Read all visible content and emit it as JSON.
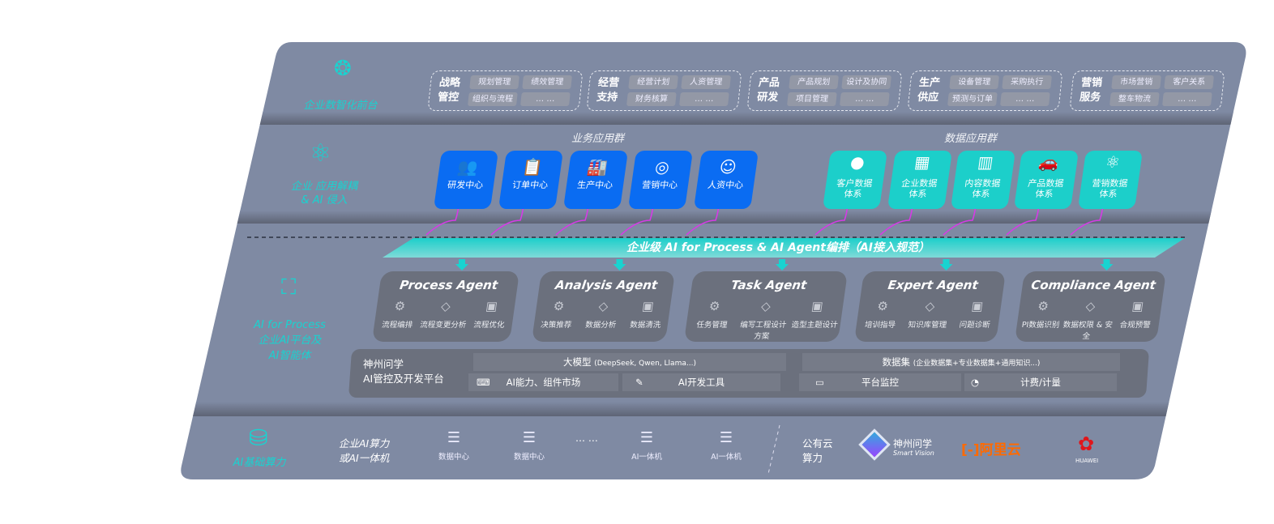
{
  "front_layer": {
    "label": "企业数智化前台",
    "icon": "brain-icon",
    "groups": [
      {
        "title": "战略管控",
        "items": [
          "规划管理",
          "绩效管理",
          "组织与流程",
          "… …"
        ]
      },
      {
        "title": "经营支持",
        "items": [
          "经营计划",
          "人资管理",
          "财务核算",
          "… …"
        ]
      },
      {
        "title": "产品研发",
        "items": [
          "产品规划",
          "设计及协同",
          "项目管理",
          "… …"
        ]
      },
      {
        "title": "生产供应",
        "items": [
          "设备管理",
          "采购执行",
          "预测与订单",
          "… …"
        ]
      },
      {
        "title": "营销服务",
        "items": [
          "市场营销",
          "客户关系",
          "整车物流",
          "… …"
        ]
      }
    ]
  },
  "app_layer": {
    "label_1": "企业 应用解耦",
    "label_2": "& AI 侵入",
    "icon": "molecule-icon",
    "business_title": "业务应用群",
    "business": [
      {
        "label": "研发中心",
        "icon": "team-icon"
      },
      {
        "label": "订单中心",
        "icon": "clipboard-icon"
      },
      {
        "label": "生产中心",
        "icon": "factory-icon"
      },
      {
        "label": "营销中心",
        "icon": "target-icon"
      },
      {
        "label": "人资中心",
        "icon": "person-growth-icon"
      }
    ],
    "data_title": "数据应用群",
    "data": [
      {
        "l1": "客户数据",
        "l2": "体系",
        "icon": "user-icon"
      },
      {
        "l1": "企业数据",
        "l2": "体系",
        "icon": "building-icon"
      },
      {
        "l1": "内容数据",
        "l2": "体系",
        "icon": "books-icon"
      },
      {
        "l1": "产品数据",
        "l2": "体系",
        "icon": "car-icon"
      },
      {
        "l1": "营销数据",
        "l2": "体系",
        "icon": "atom-icon"
      }
    ]
  },
  "ai_layer": {
    "label_1": "AI for Process",
    "label_2": "企业AI平台及",
    "label_3": "AI智能体",
    "icon": "face-scan-icon",
    "banner": "企业级 AI for Process & AI Agent编排（AI接入规范）",
    "agents": [
      {
        "name": "Process Agent",
        "items": [
          "流程编排",
          "流程变更分析",
          "流程优化"
        ]
      },
      {
        "name": "Analysis Agent",
        "items": [
          "决策推荐",
          "数据分析",
          "数据清洗"
        ]
      },
      {
        "name": "Task Agent",
        "items": [
          "任务管理",
          "编写工程设计方案",
          "造型主题设计"
        ]
      },
      {
        "name": "Expert Agent",
        "items": [
          "培训指导",
          "知识库管理",
          "问题诊断"
        ]
      },
      {
        "name": "Compliance Agent",
        "items": [
          "PI数据识别",
          "数据权限 & 安全",
          "合规预警"
        ]
      }
    ],
    "platform": {
      "name_1": "神州问学",
      "name_2": "AI管控及开发平台",
      "model": "大模型",
      "model_note": "(DeepSeek, Qwen, Llama...)",
      "dataset": "数据集",
      "dataset_note": "(企业数据集+专业数据集+通用知识...)",
      "cells": [
        "AI能力、组件市场",
        "AI开发工具",
        "平台监控",
        "计费/计量"
      ]
    }
  },
  "infra_layer": {
    "label": "AI基础算力",
    "icon": "database-icon",
    "private_1": "企业AI算力",
    "private_2": "或AI一体机",
    "nodes": [
      "数据中心",
      "数据中心",
      "AI一体机",
      "AI一体机"
    ],
    "ellipsis": "… …",
    "public_1": "公有云",
    "public_2": "算力",
    "vendors": {
      "smart_vision": "神州问学",
      "smart_vision_sub": "Smart Vision",
      "aliyun": "阿里云",
      "huawei": "HUAWEI"
    }
  },
  "colors": {
    "panel": "#7f8aa3",
    "cyan": "#19d3d0",
    "blue": "#0a6cf2",
    "teal": "#1ccfca",
    "agent": "#6b707d",
    "magenta": "#d63be6",
    "aliyun": "#ff6a00",
    "huawei": "#e0161b"
  }
}
